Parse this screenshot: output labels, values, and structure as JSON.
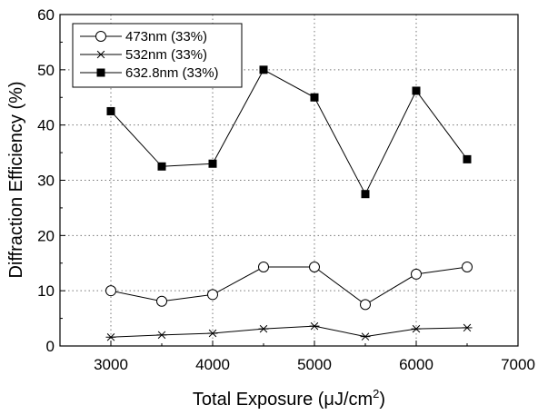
{
  "chart_data": {
    "type": "line",
    "title": "",
    "xlabel": "Total Exposure (μJ/cm",
    "xlabel_sup": "2",
    "xlabel_close": ")",
    "ylabel": "Diffraction Efficiency (%)",
    "xlim": [
      2500,
      7000
    ],
    "ylim": [
      0,
      60
    ],
    "x_ticks": [
      3000,
      4000,
      5000,
      6000,
      7000
    ],
    "y_ticks": [
      0,
      10,
      20,
      30,
      40,
      50,
      60
    ],
    "grid": true,
    "legend_position": "top-left",
    "x": [
      3000,
      3500,
      4000,
      4500,
      5000,
      5500,
      6000,
      6500
    ],
    "series": [
      {
        "name": "473nm (33%)",
        "marker": "open-circle",
        "values": [
          10.0,
          8.1,
          9.3,
          14.3,
          14.3,
          7.5,
          13.0,
          14.3
        ]
      },
      {
        "name": "532nm (33%)",
        "marker": "asterisk",
        "values": [
          1.6,
          2.0,
          2.3,
          3.1,
          3.6,
          1.7,
          3.1,
          3.3
        ]
      },
      {
        "name": "632.8nm (33%)",
        "marker": "filled-square",
        "values": [
          42.5,
          32.5,
          33.0,
          50.0,
          45.0,
          27.5,
          46.2,
          33.8
        ]
      }
    ]
  }
}
